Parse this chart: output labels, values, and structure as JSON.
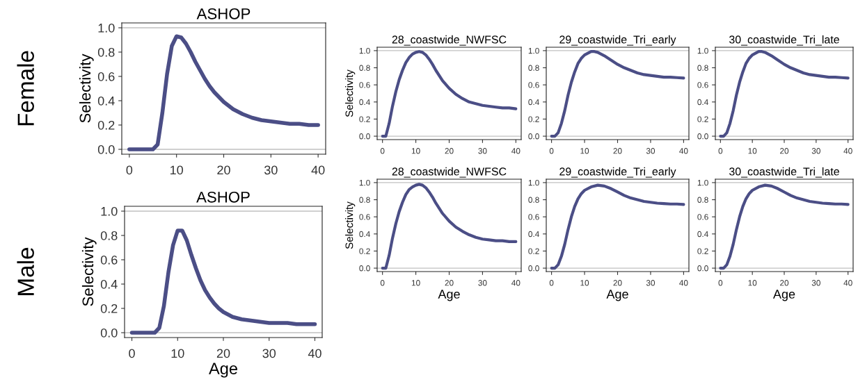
{
  "chart_data": [
    {
      "type": "line",
      "title": "ASHOP",
      "ylabel": "Selectivity",
      "annotations": [
        "Female"
      ],
      "xlim": [
        -1.6,
        41.6
      ],
      "ylim": [
        -0.04,
        1.04
      ],
      "xticks": [
        0,
        10,
        20,
        30,
        40
      ],
      "yticks": [
        {
          "value": 0,
          "label": "0.0"
        },
        {
          "value": 0.2,
          "label": "0.2"
        },
        {
          "value": 0.4,
          "label": "0.4"
        },
        {
          "value": 0.6,
          "label": "0.6"
        },
        {
          "value": 0.8,
          "label": "0.8"
        },
        {
          "value": 1,
          "label": "1.0"
        }
      ],
      "ref_lines": [
        {
          "axis": "y",
          "value": 0,
          "color": "#c0c0c0"
        },
        {
          "axis": "y",
          "value": 1,
          "color": "#c0c0c0"
        }
      ],
      "x": [
        0,
        1,
        2,
        3,
        4,
        5,
        6,
        7,
        8,
        9,
        10,
        11,
        12,
        13,
        14,
        15,
        16,
        17,
        18,
        19,
        20,
        22,
        24,
        26,
        28,
        30,
        32,
        34,
        36,
        38,
        40
      ],
      "series": [
        {
          "color": "#4b4e86",
          "values": [
            0,
            0,
            0,
            0,
            0,
            0,
            0.04,
            0.3,
            0.62,
            0.85,
            0.93,
            0.92,
            0.87,
            0.8,
            0.72,
            0.65,
            0.58,
            0.52,
            0.47,
            0.43,
            0.39,
            0.33,
            0.29,
            0.26,
            0.24,
            0.23,
            0.22,
            0.21,
            0.21,
            0.2,
            0.2
          ]
        }
      ]
    },
    {
      "type": "line",
      "title": "28_coastwide_NWFSC",
      "ylabel": "Selectivity",
      "xlim": [
        -1.6,
        41.6
      ],
      "ylim": [
        -0.04,
        1.04
      ],
      "xticks": [
        0,
        10,
        20,
        30,
        40
      ],
      "yticks": [
        {
          "value": 0,
          "label": "0.0"
        },
        {
          "value": 0.2,
          "label": "0.2"
        },
        {
          "value": 0.4,
          "label": "0.4"
        },
        {
          "value": 0.6,
          "label": "0.6"
        },
        {
          "value": 0.8,
          "label": "0.8"
        },
        {
          "value": 1,
          "label": "1.0"
        }
      ],
      "ref_lines": [
        {
          "axis": "y",
          "value": 0,
          "color": "#c0c0c0"
        },
        {
          "axis": "y",
          "value": 1,
          "color": "#c0c0c0"
        }
      ],
      "x": [
        0,
        1,
        2,
        3,
        4,
        5,
        6,
        7,
        8,
        9,
        10,
        11,
        12,
        13,
        14,
        15,
        16,
        18,
        20,
        22,
        24,
        26,
        28,
        30,
        32,
        34,
        36,
        38,
        40
      ],
      "series": [
        {
          "color": "#4b4e86",
          "values": [
            0,
            0,
            0.15,
            0.35,
            0.52,
            0.66,
            0.77,
            0.86,
            0.92,
            0.96,
            0.98,
            0.99,
            0.98,
            0.95,
            0.9,
            0.84,
            0.77,
            0.65,
            0.56,
            0.49,
            0.44,
            0.4,
            0.38,
            0.36,
            0.35,
            0.34,
            0.33,
            0.33,
            0.32
          ]
        }
      ]
    },
    {
      "type": "line",
      "title": "29_coastwide_Tri_early",
      "xlim": [
        -1.6,
        41.6
      ],
      "ylim": [
        -0.04,
        1.04
      ],
      "xticks": [
        0,
        10,
        20,
        30,
        40
      ],
      "yticks": [
        {
          "value": 0,
          "label": "0.0"
        },
        {
          "value": 0.2,
          "label": "0.2"
        },
        {
          "value": 0.4,
          "label": "0.4"
        },
        {
          "value": 0.6,
          "label": "0.6"
        },
        {
          "value": 0.8,
          "label": "0.8"
        },
        {
          "value": 1,
          "label": "1.0"
        }
      ],
      "ref_lines": [
        {
          "axis": "y",
          "value": 0,
          "color": "#c0c0c0"
        },
        {
          "axis": "y",
          "value": 1,
          "color": "#c0c0c0"
        }
      ],
      "x": [
        0,
        1,
        2,
        3,
        4,
        5,
        6,
        7,
        8,
        9,
        10,
        12,
        13,
        14,
        16,
        18,
        20,
        22,
        24,
        26,
        28,
        30,
        32,
        34,
        36,
        38,
        40
      ],
      "series": [
        {
          "color": "#4b4e86",
          "values": [
            0,
            0,
            0.04,
            0.15,
            0.3,
            0.48,
            0.63,
            0.75,
            0.85,
            0.91,
            0.95,
            0.99,
            0.99,
            0.98,
            0.94,
            0.89,
            0.84,
            0.8,
            0.77,
            0.74,
            0.72,
            0.71,
            0.7,
            0.69,
            0.69,
            0.685,
            0.68
          ]
        }
      ]
    },
    {
      "type": "line",
      "title": "30_coastwide_Tri_late",
      "xlim": [
        -1.6,
        41.6
      ],
      "ylim": [
        -0.04,
        1.04
      ],
      "xticks": [
        0,
        10,
        20,
        30,
        40
      ],
      "yticks": [
        {
          "value": 0,
          "label": "0.0"
        },
        {
          "value": 0.2,
          "label": "0.2"
        },
        {
          "value": 0.4,
          "label": "0.4"
        },
        {
          "value": 0.6,
          "label": "0.6"
        },
        {
          "value": 0.8,
          "label": "0.8"
        },
        {
          "value": 1,
          "label": "1.0"
        }
      ],
      "ref_lines": [
        {
          "axis": "y",
          "value": 0,
          "color": "#c0c0c0"
        },
        {
          "axis": "y",
          "value": 1,
          "color": "#c0c0c0"
        }
      ],
      "x": [
        0,
        1,
        2,
        3,
        4,
        5,
        6,
        7,
        8,
        9,
        10,
        12,
        13,
        14,
        16,
        18,
        20,
        22,
        24,
        26,
        28,
        30,
        32,
        34,
        36,
        38,
        40
      ],
      "series": [
        {
          "color": "#4b4e86",
          "values": [
            0,
            0,
            0.04,
            0.15,
            0.3,
            0.48,
            0.63,
            0.75,
            0.85,
            0.91,
            0.95,
            0.99,
            0.99,
            0.98,
            0.94,
            0.89,
            0.84,
            0.8,
            0.77,
            0.74,
            0.72,
            0.71,
            0.7,
            0.69,
            0.69,
            0.685,
            0.68
          ]
        }
      ]
    },
    {
      "type": "line",
      "title": "ASHOP",
      "xlabel": "Age",
      "ylabel": "Selectivity",
      "annotations": [
        "Male"
      ],
      "xlim": [
        -1.6,
        41.6
      ],
      "ylim": [
        -0.04,
        1.04
      ],
      "xticks": [
        0,
        10,
        20,
        30,
        40
      ],
      "yticks": [
        {
          "value": 0,
          "label": "0.0"
        },
        {
          "value": 0.2,
          "label": "0.2"
        },
        {
          "value": 0.4,
          "label": "0.4"
        },
        {
          "value": 0.6,
          "label": "0.6"
        },
        {
          "value": 0.8,
          "label": "0.8"
        },
        {
          "value": 1,
          "label": "1.0"
        }
      ],
      "ref_lines": [
        {
          "axis": "y",
          "value": 0,
          "color": "#c0c0c0"
        },
        {
          "axis": "y",
          "value": 1,
          "color": "#c0c0c0"
        }
      ],
      "x": [
        0,
        1,
        2,
        3,
        4,
        5,
        6,
        7,
        8,
        9,
        10,
        11,
        12,
        13,
        14,
        15,
        16,
        17,
        18,
        19,
        20,
        22,
        24,
        26,
        28,
        30,
        32,
        34,
        36,
        38,
        40
      ],
      "series": [
        {
          "color": "#4b4e86",
          "values": [
            0,
            0,
            0,
            0,
            0,
            0,
            0.04,
            0.22,
            0.5,
            0.72,
            0.84,
            0.84,
            0.76,
            0.64,
            0.53,
            0.43,
            0.35,
            0.29,
            0.24,
            0.2,
            0.17,
            0.13,
            0.11,
            0.1,
            0.09,
            0.08,
            0.08,
            0.08,
            0.07,
            0.07,
            0.07
          ]
        }
      ]
    },
    {
      "type": "line",
      "title": "28_coastwide_NWFSC",
      "xlabel": "Age",
      "ylabel": "Selectivity",
      "xlim": [
        -1.6,
        41.6
      ],
      "ylim": [
        -0.04,
        1.04
      ],
      "xticks": [
        0,
        10,
        20,
        30,
        40
      ],
      "yticks": [
        {
          "value": 0,
          "label": "0.0"
        },
        {
          "value": 0.2,
          "label": "0.2"
        },
        {
          "value": 0.4,
          "label": "0.4"
        },
        {
          "value": 0.6,
          "label": "0.6"
        },
        {
          "value": 0.8,
          "label": "0.8"
        },
        {
          "value": 1,
          "label": "1.0"
        }
      ],
      "ref_lines": [
        {
          "axis": "y",
          "value": 0,
          "color": "#c0c0c0"
        },
        {
          "axis": "y",
          "value": 1,
          "color": "#c0c0c0"
        }
      ],
      "x": [
        0,
        1,
        2,
        3,
        4,
        5,
        6,
        7,
        8,
        9,
        10,
        11,
        12,
        13,
        14,
        15,
        16,
        18,
        20,
        22,
        24,
        26,
        28,
        30,
        32,
        34,
        36,
        38,
        40
      ],
      "series": [
        {
          "color": "#4b4e86",
          "values": [
            0,
            0,
            0.15,
            0.35,
            0.52,
            0.66,
            0.77,
            0.86,
            0.92,
            0.95,
            0.97,
            0.98,
            0.97,
            0.94,
            0.89,
            0.83,
            0.76,
            0.64,
            0.55,
            0.48,
            0.43,
            0.39,
            0.36,
            0.34,
            0.33,
            0.32,
            0.32,
            0.31,
            0.31
          ]
        }
      ]
    },
    {
      "type": "line",
      "title": "29_coastwide_Tri_early",
      "xlabel": "Age",
      "xlim": [
        -1.6,
        41.6
      ],
      "ylim": [
        -0.04,
        1.04
      ],
      "xticks": [
        0,
        10,
        20,
        30,
        40
      ],
      "yticks": [
        {
          "value": 0,
          "label": "0.0"
        },
        {
          "value": 0.2,
          "label": "0.2"
        },
        {
          "value": 0.4,
          "label": "0.4"
        },
        {
          "value": 0.6,
          "label": "0.6"
        },
        {
          "value": 0.8,
          "label": "0.8"
        },
        {
          "value": 1,
          "label": "1.0"
        }
      ],
      "ref_lines": [
        {
          "axis": "y",
          "value": 0,
          "color": "#c0c0c0"
        },
        {
          "axis": "y",
          "value": 1,
          "color": "#c0c0c0"
        }
      ],
      "x": [
        0,
        1,
        2,
        3,
        4,
        5,
        6,
        7,
        8,
        9,
        10,
        12,
        14,
        16,
        18,
        20,
        22,
        24,
        26,
        28,
        30,
        32,
        34,
        36,
        38,
        40
      ],
      "series": [
        {
          "color": "#4b4e86",
          "values": [
            0,
            0,
            0.04,
            0.14,
            0.28,
            0.45,
            0.6,
            0.72,
            0.81,
            0.87,
            0.91,
            0.95,
            0.97,
            0.96,
            0.93,
            0.89,
            0.85,
            0.82,
            0.8,
            0.78,
            0.77,
            0.76,
            0.755,
            0.75,
            0.75,
            0.745
          ]
        }
      ]
    },
    {
      "type": "line",
      "title": "30_coastwide_Tri_late",
      "xlabel": "Age",
      "xlim": [
        -1.6,
        41.6
      ],
      "ylim": [
        -0.04,
        1.04
      ],
      "xticks": [
        0,
        10,
        20,
        30,
        40
      ],
      "yticks": [
        {
          "value": 0,
          "label": "0.0"
        },
        {
          "value": 0.2,
          "label": "0.2"
        },
        {
          "value": 0.4,
          "label": "0.4"
        },
        {
          "value": 0.6,
          "label": "0.6"
        },
        {
          "value": 0.8,
          "label": "0.8"
        },
        {
          "value": 1,
          "label": "1.0"
        }
      ],
      "ref_lines": [
        {
          "axis": "y",
          "value": 0,
          "color": "#c0c0c0"
        },
        {
          "axis": "y",
          "value": 1,
          "color": "#c0c0c0"
        }
      ],
      "x": [
        0,
        1,
        2,
        3,
        4,
        5,
        6,
        7,
        8,
        9,
        10,
        12,
        14,
        16,
        18,
        20,
        22,
        24,
        26,
        28,
        30,
        32,
        34,
        36,
        38,
        40
      ],
      "series": [
        {
          "color": "#4b4e86",
          "values": [
            0,
            0,
            0.04,
            0.14,
            0.28,
            0.45,
            0.6,
            0.72,
            0.81,
            0.87,
            0.91,
            0.95,
            0.97,
            0.96,
            0.93,
            0.89,
            0.85,
            0.82,
            0.8,
            0.78,
            0.77,
            0.76,
            0.755,
            0.75,
            0.75,
            0.745
          ]
        }
      ]
    }
  ]
}
